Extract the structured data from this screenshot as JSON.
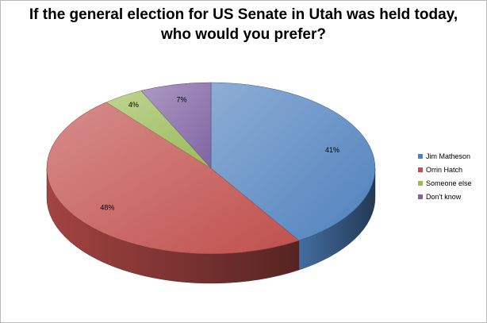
{
  "chart_data": {
    "type": "pie",
    "title_lines": [
      "If the general election for US Senate in Utah was held today,",
      "who would you prefer?"
    ],
    "categories": [
      "Jim Matheson",
      "Orrin Hatch",
      "Someone else",
      "Don't know"
    ],
    "values": [
      41,
      48,
      4,
      7
    ],
    "labels": [
      "41%",
      "48%",
      "4%",
      "7%"
    ],
    "colors": [
      "#4f81bd",
      "#c0504d",
      "#9bbb59",
      "#8064a2"
    ],
    "three_d": true,
    "legend_position": "right"
  }
}
